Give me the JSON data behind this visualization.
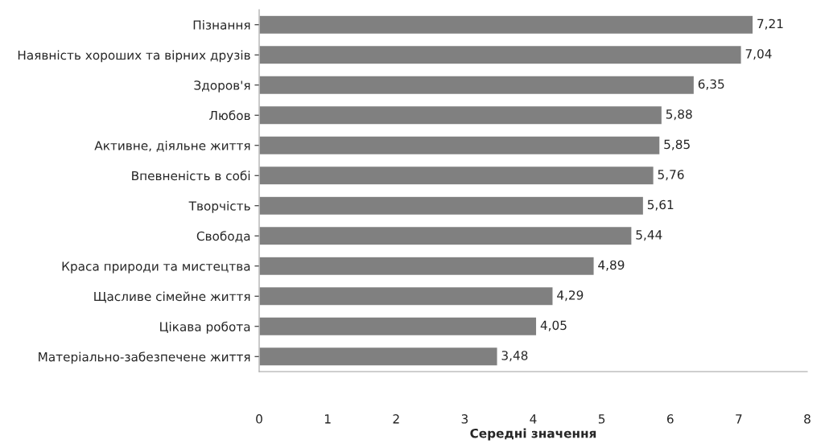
{
  "chart_data": {
    "type": "bar",
    "orientation": "horizontal",
    "xlabel": "Середні значення",
    "categories": [
      "Пізнання",
      "Наявність хороших та вірних друзів",
      "Здоров'я",
      "Любов",
      "Активне, діяльне життя",
      "Впевненість в собі",
      "Творчість",
      "Свобода",
      "Краса природи та мистецтва",
      "Щасливе сімейне життя",
      "Цікава робота",
      "Матеріально-забезпечене життя"
    ],
    "values": [
      7.21,
      7.04,
      6.35,
      5.88,
      5.85,
      5.76,
      5.61,
      5.44,
      4.89,
      4.29,
      4.05,
      3.48
    ],
    "value_labels": [
      "7,21",
      "7,04",
      "6,35",
      "5,88",
      "5,85",
      "5,76",
      "5,61",
      "5,44",
      "4,89",
      "4,29",
      "4,05",
      "3,48"
    ],
    "color": "#808080",
    "xlim": [
      0,
      8
    ],
    "xticks": [
      0,
      1,
      2,
      3,
      4,
      5,
      6,
      7,
      8
    ],
    "grid": false
  }
}
